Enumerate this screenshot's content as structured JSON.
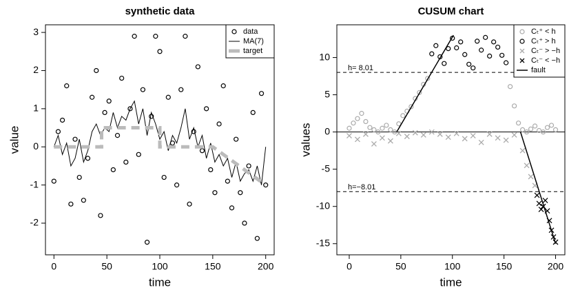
{
  "chart_data": [
    {
      "type": "scatter",
      "title": "synthetic data",
      "x_label": "time",
      "y_label": "value",
      "xlim": [
        -8,
        208
      ],
      "ylim": [
        -2.83,
        3.2
      ],
      "xticks": [
        0,
        50,
        100,
        150,
        200
      ],
      "yticks": [
        -2,
        -1,
        0,
        1,
        2,
        3
      ],
      "legend": "top-right",
      "series": [
        {
          "name": "data",
          "color": "#000000",
          "mode": "points",
          "marker": "circle",
          "x": [
            0,
            4,
            8,
            12,
            16,
            20,
            24,
            28,
            32,
            36,
            40,
            44,
            48,
            52,
            56,
            60,
            64,
            68,
            72,
            76,
            80,
            84,
            88,
            92,
            96,
            100,
            104,
            108,
            112,
            116,
            120,
            124,
            128,
            132,
            136,
            140,
            144,
            148,
            152,
            156,
            160,
            164,
            168,
            172,
            176,
            180,
            184,
            188,
            192,
            196,
            200
          ],
          "values": [
            -0.9,
            0.4,
            0.7,
            1.6,
            -1.5,
            0.2,
            -0.8,
            -1.4,
            -0.3,
            1.3,
            2.0,
            -1.8,
            0.9,
            1.2,
            -0.6,
            0.3,
            1.8,
            -0.4,
            1.0,
            2.9,
            -0.2,
            1.5,
            -2.5,
            0.8,
            2.9,
            2.5,
            -0.8,
            1.3,
            0.1,
            -1.0,
            1.5,
            2.9,
            -1.5,
            0.4,
            2.1,
            -0.1,
            1.0,
            -0.6,
            -1.2,
            0.6,
            1.6,
            -0.9,
            -1.6,
            0.2,
            -1.2,
            -2.0,
            -0.5,
            0.9,
            -2.4,
            1.4,
            -1.0
          ]
        },
        {
          "name": "MA(7)",
          "color": "#000000",
          "mode": "line",
          "width": 1,
          "x": [
            0,
            4,
            8,
            12,
            16,
            20,
            24,
            28,
            32,
            36,
            40,
            44,
            48,
            52,
            56,
            60,
            64,
            68,
            72,
            76,
            80,
            84,
            88,
            92,
            96,
            100,
            104,
            108,
            112,
            116,
            120,
            124,
            128,
            132,
            136,
            140,
            144,
            148,
            152,
            156,
            160,
            164,
            168,
            172,
            176,
            180,
            184,
            188,
            192,
            196,
            200
          ],
          "values": [
            0.0,
            0.3,
            -0.2,
            0.1,
            -0.5,
            -0.3,
            0.2,
            -0.4,
            -0.1,
            0.4,
            0.6,
            0.3,
            0.5,
            0.4,
            0.9,
            0.5,
            0.8,
            0.7,
            1.0,
            1.2,
            0.6,
            1.0,
            0.3,
            0.9,
            0.6,
            0.2,
            0.4,
            -0.1,
            0.3,
            0.1,
            0.5,
            1.0,
            0.2,
            0.5,
            0.0,
            0.3,
            -0.3,
            0.1,
            -0.4,
            -0.2,
            -0.5,
            -0.3,
            -0.8,
            -0.4,
            -0.9,
            -0.7,
            -0.6,
            -0.9,
            -0.5,
            -1.0,
            0.0
          ]
        },
        {
          "name": "target",
          "color": "#bbbbbb",
          "mode": "line",
          "width": 5,
          "dash": true,
          "x": [
            0,
            45,
            45,
            100,
            100,
            150,
            200
          ],
          "values": [
            0,
            0,
            0.5,
            0.5,
            0,
            0,
            -1
          ]
        }
      ]
    },
    {
      "type": "scatter",
      "title": "CUSUM chart",
      "x_label": "time",
      "y_label": "values",
      "xlim": [
        -12,
        209
      ],
      "ylim": [
        -16.5,
        14.4
      ],
      "xticks": [
        0,
        50,
        100,
        150,
        200
      ],
      "yticks": [
        -15,
        -10,
        -5,
        0,
        5,
        10
      ],
      "legend": "top-right",
      "hlines": [
        {
          "value": 0
        },
        {
          "value": 8.01,
          "label": "h= 8.01",
          "dash": true
        },
        {
          "value": -8.01,
          "label": "h=−8.01",
          "dash": true
        }
      ],
      "series": [
        {
          "name": "Cₜ⁺ < h",
          "color": "#aaaaaa",
          "mode": "points",
          "marker": "circle",
          "x": [
            0,
            4,
            8,
            12,
            16,
            20,
            24,
            28,
            32,
            36,
            40,
            44,
            48,
            52,
            56,
            60,
            64,
            68,
            72,
            76,
            156,
            160,
            164,
            168,
            172,
            176,
            180,
            184,
            188,
            192,
            196,
            200
          ],
          "values": [
            0.5,
            1.2,
            1.8,
            2.5,
            1.4,
            0.6,
            0.3,
            0,
            0.5,
            0.9,
            0.3,
            0,
            1.1,
            2.2,
            2.8,
            3.4,
            4.5,
            5.3,
            6.4,
            7.2,
            6.1,
            3.5,
            1.2,
            0.3,
            0,
            0.4,
            0.8,
            0.2,
            0,
            0.6,
            0.9,
            0.3
          ]
        },
        {
          "name": "Cₜ⁺ > h",
          "color": "#000000",
          "mode": "points",
          "marker": "circle",
          "x": [
            80,
            84,
            88,
            92,
            96,
            100,
            104,
            108,
            112,
            116,
            120,
            124,
            128,
            132,
            136,
            140,
            144,
            148,
            152
          ],
          "values": [
            10.5,
            11.6,
            10.1,
            9.2,
            11.2,
            12.6,
            11.3,
            12.1,
            10.4,
            9.1,
            8.6,
            12.2,
            11.0,
            12.7,
            10.2,
            12.1,
            11.4,
            10.3,
            9.3
          ]
        },
        {
          "name": "Cₜ⁻ > −h",
          "color": "#aaaaaa",
          "mode": "points",
          "marker": "x",
          "x": [
            0,
            8,
            16,
            24,
            32,
            40,
            48,
            56,
            64,
            72,
            80,
            88,
            96,
            104,
            112,
            120,
            128,
            136,
            144,
            152,
            160,
            168,
            172,
            176,
            180
          ],
          "values": [
            -0.5,
            -1.0,
            -0.3,
            -1.6,
            -0.8,
            -1.2,
            -0.2,
            -0.6,
            -0.1,
            -0.4,
            0,
            -0.3,
            -0.7,
            -0.2,
            -0.9,
            -0.5,
            -1.4,
            -0.3,
            -0.8,
            -1.1,
            -0.4,
            -2.5,
            -4.5,
            -6.0,
            -7.2
          ]
        },
        {
          "name": "Cₜ⁻ < −h",
          "color": "#000000",
          "mode": "points",
          "marker": "x",
          "x": [
            182,
            184,
            186,
            188,
            190,
            192,
            194,
            196,
            198,
            200
          ],
          "values": [
            -8.5,
            -9.6,
            -10.4,
            -10.0,
            -9.2,
            -10.6,
            -11.9,
            -13.2,
            -14.1,
            -14.8
          ]
        },
        {
          "name": "fault",
          "color": "#000000",
          "mode": "line",
          "width": 1.5,
          "x": [
            46,
            101,
            133,
            166,
            200
          ],
          "values": [
            0,
            13,
            null,
            0,
            -15
          ]
        }
      ]
    }
  ]
}
